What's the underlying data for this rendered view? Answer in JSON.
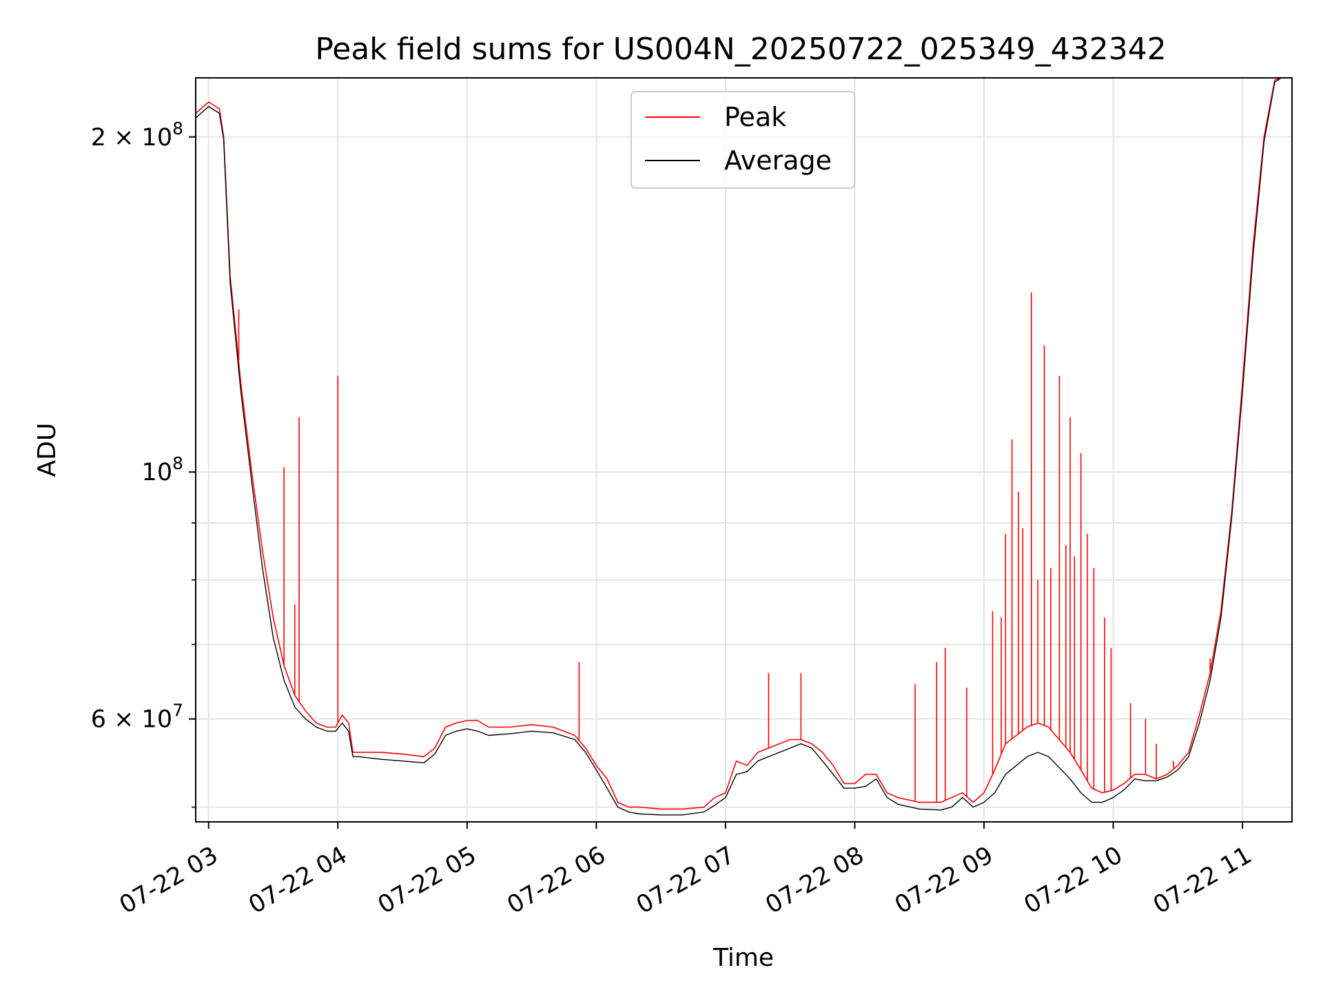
{
  "chart_data": {
    "type": "line",
    "title": "Peak field sums for US004N_20250722_025349_432342",
    "xlabel": "Time",
    "ylabel": "ADU",
    "yscale": "log",
    "grid": true,
    "legend_position": "top-center",
    "xlim": [
      "2025-07-22 02:54",
      "2025-07-22 11:23"
    ],
    "ylim": [
      48500000,
      226000000
    ],
    "x_ticks": [
      {
        "t": "2025-07-22 03:00",
        "label": "07-22 03"
      },
      {
        "t": "2025-07-22 04:00",
        "label": "07-22 04"
      },
      {
        "t": "2025-07-22 05:00",
        "label": "07-22 05"
      },
      {
        "t": "2025-07-22 06:00",
        "label": "07-22 06"
      },
      {
        "t": "2025-07-22 07:00",
        "label": "07-22 07"
      },
      {
        "t": "2025-07-22 08:00",
        "label": "07-22 08"
      },
      {
        "t": "2025-07-22 09:00",
        "label": "07-22 09"
      },
      {
        "t": "2025-07-22 10:00",
        "label": "07-22 10"
      },
      {
        "t": "2025-07-22 11:00",
        "label": "07-22 11"
      }
    ],
    "y_ticks_major": [
      {
        "v": 60000000,
        "base": "6 × 10",
        "exp": "7"
      },
      {
        "v": 100000000,
        "base": "10",
        "exp": "8"
      },
      {
        "v": 200000000,
        "base": "2 × 10",
        "exp": "8"
      }
    ],
    "y_ticks_minor": [
      50000000,
      70000000,
      80000000,
      90000000
    ],
    "x": [
      "2025-07-22 02:54",
      "2025-07-22 03:00",
      "2025-07-22 03:05",
      "2025-07-22 03:07",
      "2025-07-22 03:10",
      "2025-07-22 03:15",
      "2025-07-22 03:20",
      "2025-07-22 03:25",
      "2025-07-22 03:30",
      "2025-07-22 03:35",
      "2025-07-22 03:40",
      "2025-07-22 03:45",
      "2025-07-22 03:50",
      "2025-07-22 03:55",
      "2025-07-22 03:59",
      "2025-07-22 04:02",
      "2025-07-22 04:05",
      "2025-07-22 04:07",
      "2025-07-22 04:10",
      "2025-07-22 04:20",
      "2025-07-22 04:30",
      "2025-07-22 04:40",
      "2025-07-22 04:45",
      "2025-07-22 04:50",
      "2025-07-22 04:55",
      "2025-07-22 05:00",
      "2025-07-22 05:05",
      "2025-07-22 05:10",
      "2025-07-22 05:20",
      "2025-07-22 05:30",
      "2025-07-22 05:40",
      "2025-07-22 05:50",
      "2025-07-22 05:55",
      "2025-07-22 06:00",
      "2025-07-22 06:05",
      "2025-07-22 06:10",
      "2025-07-22 06:15",
      "2025-07-22 06:20",
      "2025-07-22 06:30",
      "2025-07-22 06:40",
      "2025-07-22 06:50",
      "2025-07-22 06:55",
      "2025-07-22 07:00",
      "2025-07-22 07:05",
      "2025-07-22 07:10",
      "2025-07-22 07:15",
      "2025-07-22 07:20",
      "2025-07-22 07:30",
      "2025-07-22 07:35",
      "2025-07-22 07:40",
      "2025-07-22 07:45",
      "2025-07-22 07:50",
      "2025-07-22 07:55",
      "2025-07-22 08:00",
      "2025-07-22 08:05",
      "2025-07-22 08:10",
      "2025-07-22 08:15",
      "2025-07-22 08:20",
      "2025-07-22 08:30",
      "2025-07-22 08:40",
      "2025-07-22 08:45",
      "2025-07-22 08:50",
      "2025-07-22 08:55",
      "2025-07-22 09:00",
      "2025-07-22 09:05",
      "2025-07-22 09:10",
      "2025-07-22 09:20",
      "2025-07-22 09:25",
      "2025-07-22 09:30",
      "2025-07-22 09:40",
      "2025-07-22 09:45",
      "2025-07-22 09:50",
      "2025-07-22 09:55",
      "2025-07-22 10:00",
      "2025-07-22 10:05",
      "2025-07-22 10:10",
      "2025-07-22 10:15",
      "2025-07-22 10:20",
      "2025-07-22 10:25",
      "2025-07-22 10:30",
      "2025-07-22 10:35",
      "2025-07-22 10:40",
      "2025-07-22 10:45",
      "2025-07-22 10:50",
      "2025-07-22 10:55",
      "2025-07-22 11:00",
      "2025-07-22 11:05",
      "2025-07-22 11:10",
      "2025-07-22 11:15",
      "2025-07-22 11:18",
      "2025-07-22 11:23"
    ],
    "series": [
      {
        "name": "Peak",
        "color": "#ff0000",
        "values": [
          210000000,
          215000000,
          212000000,
          200000000,
          150000000,
          120000000,
          100000000,
          85000000,
          74000000,
          67000000,
          63000000,
          61000000,
          59500000,
          59000000,
          59000000,
          60500000,
          59500000,
          56000000,
          56000000,
          56000000,
          55800000,
          55500000,
          56500000,
          59000000,
          59500000,
          59800000,
          59800000,
          59000000,
          59000000,
          59300000,
          59000000,
          58000000,
          56500000,
          54500000,
          53000000,
          50500000,
          50000000,
          50000000,
          49800000,
          49800000,
          50000000,
          51000000,
          51500000,
          55000000,
          54500000,
          56000000,
          56500000,
          57500000,
          57500000,
          57000000,
          56000000,
          54500000,
          52500000,
          52500000,
          53500000,
          53500000,
          51500000,
          51000000,
          50500000,
          50500000,
          51000000,
          51500000,
          50500000,
          51500000,
          54000000,
          57000000,
          59000000,
          59500000,
          59000000,
          56000000,
          54000000,
          52000000,
          51500000,
          51800000,
          52500000,
          53500000,
          53500000,
          53000000,
          53500000,
          54500000,
          56000000,
          60500000,
          66000000,
          75000000,
          92000000,
          120000000,
          160000000,
          200000000,
          225000000,
          226000000,
          226000000
        ],
        "spikes": [
          {
            "t": "2025-07-22 03:14",
            "v": 140000000
          },
          {
            "t": "2025-07-22 03:35",
            "v": 101000000
          },
          {
            "t": "2025-07-22 03:42",
            "v": 112000000
          },
          {
            "t": "2025-07-22 03:40",
            "v": 76000000
          },
          {
            "t": "2025-07-22 04:00",
            "v": 122000000
          },
          {
            "t": "2025-07-22 05:52",
            "v": 67500000
          },
          {
            "t": "2025-07-22 07:20",
            "v": 66000000
          },
          {
            "t": "2025-07-22 07:35",
            "v": 66000000
          },
          {
            "t": "2025-07-22 08:28",
            "v": 64500000
          },
          {
            "t": "2025-07-22 08:38",
            "v": 67500000
          },
          {
            "t": "2025-07-22 08:42",
            "v": 69500000
          },
          {
            "t": "2025-07-22 08:52",
            "v": 64000000
          },
          {
            "t": "2025-07-22 09:04",
            "v": 75000000
          },
          {
            "t": "2025-07-22 09:08",
            "v": 74000000
          },
          {
            "t": "2025-07-22 09:10",
            "v": 88000000
          },
          {
            "t": "2025-07-22 09:13",
            "v": 107000000
          },
          {
            "t": "2025-07-22 09:16",
            "v": 96000000
          },
          {
            "t": "2025-07-22 09:18",
            "v": 89000000
          },
          {
            "t": "2025-07-22 09:22",
            "v": 145000000
          },
          {
            "t": "2025-07-22 09:25",
            "v": 80000000
          },
          {
            "t": "2025-07-22 09:28",
            "v": 130000000
          },
          {
            "t": "2025-07-22 09:31",
            "v": 82000000
          },
          {
            "t": "2025-07-22 09:35",
            "v": 122000000
          },
          {
            "t": "2025-07-22 09:38",
            "v": 86000000
          },
          {
            "t": "2025-07-22 09:40",
            "v": 112000000
          },
          {
            "t": "2025-07-22 09:42",
            "v": 84000000
          },
          {
            "t": "2025-07-22 09:45",
            "v": 104000000
          },
          {
            "t": "2025-07-22 09:48",
            "v": 88000000
          },
          {
            "t": "2025-07-22 09:51",
            "v": 82000000
          },
          {
            "t": "2025-07-22 09:56",
            "v": 74000000
          },
          {
            "t": "2025-07-22 09:59",
            "v": 69500000
          },
          {
            "t": "2025-07-22 10:08",
            "v": 62000000
          },
          {
            "t": "2025-07-22 10:15",
            "v": 60000000
          },
          {
            "t": "2025-07-22 10:20",
            "v": 57000000
          },
          {
            "t": "2025-07-22 10:28",
            "v": 55000000
          },
          {
            "t": "2025-07-22 10:45",
            "v": 68000000
          }
        ]
      },
      {
        "name": "Average",
        "color": "#000000",
        "values": [
          208000000,
          213000000,
          210000000,
          199000000,
          148000000,
          118000000,
          98000000,
          82000000,
          71000000,
          65000000,
          61500000,
          60000000,
          59000000,
          58500000,
          58500000,
          59500000,
          58500000,
          55500000,
          55500000,
          55200000,
          55000000,
          54800000,
          55800000,
          58000000,
          58500000,
          58800000,
          58500000,
          58000000,
          58200000,
          58500000,
          58300000,
          57500000,
          56000000,
          54000000,
          52000000,
          50000000,
          49500000,
          49300000,
          49200000,
          49200000,
          49500000,
          50200000,
          51000000,
          53500000,
          53800000,
          55000000,
          55500000,
          56500000,
          57000000,
          56500000,
          55000000,
          53500000,
          52000000,
          52000000,
          52200000,
          53000000,
          51000000,
          50300000,
          49800000,
          49700000,
          50000000,
          51000000,
          50000000,
          50500000,
          51500000,
          53500000,
          55500000,
          56000000,
          55500000,
          53000000,
          51500000,
          50500000,
          50500000,
          51000000,
          51800000,
          53000000,
          52800000,
          52800000,
          53200000,
          54000000,
          55500000,
          59500000,
          65000000,
          74000000,
          91000000,
          118000000,
          157000000,
          198000000,
          224000000,
          226000000,
          226000000
        ]
      }
    ]
  }
}
